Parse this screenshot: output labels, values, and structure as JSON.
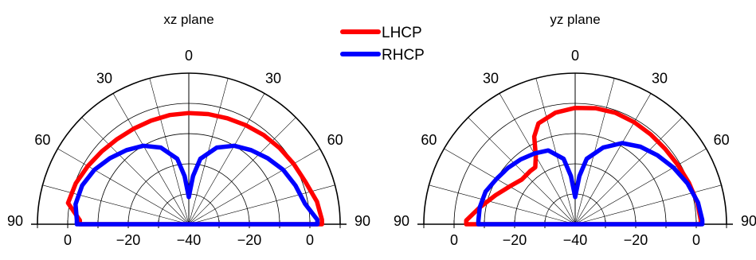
{
  "colors": {
    "lhcp": "#ff0000",
    "rhcp": "#0000ff",
    "axis": "#000000",
    "grid": "#000000"
  },
  "legend": {
    "position": "top-center",
    "items": [
      {
        "label": "LHCP",
        "color": "#ff0000"
      },
      {
        "label": "RHCP",
        "color": "#0000ff"
      }
    ]
  },
  "chart_data": [
    {
      "type": "line",
      "coordinate_system": "polar-half",
      "title": "xz plane",
      "angle_unit": "deg",
      "angle_range": [
        -90,
        90
      ],
      "angle_ticks": [
        -90,
        -60,
        -30,
        0,
        30,
        60,
        90
      ],
      "angle_tick_labels": [
        "90",
        "60",
        "30",
        "0",
        "30",
        "60",
        "90"
      ],
      "radial_range": [
        -40,
        10
      ],
      "radial_grid": [
        -30,
        -20,
        -10,
        0,
        10
      ],
      "radial_ticks_left": [
        "0",
        "−20",
        "−40"
      ],
      "radial_ticks_right": [
        "−20",
        "0"
      ],
      "grid": true,
      "series": [
        {
          "name": "LHCP",
          "angle": [
            -88,
            -80,
            -70,
            -60,
            -50,
            -40,
            -30,
            -20,
            -10,
            0,
            10,
            20,
            30,
            40,
            50,
            60,
            70,
            80,
            88
          ],
          "r": [
            -4,
            0.5,
            -0.3,
            -1.5,
            -2.5,
            -3.2,
            -3.5,
            -3.5,
            -3.3,
            -3.2,
            -3.0,
            -2.7,
            -2.2,
            -1.5,
            -0.8,
            0.0,
            1.0,
            3.0,
            4.0
          ]
        },
        {
          "name": "RHCP",
          "angle": [
            -88,
            -80,
            -70,
            -60,
            -50,
            -40,
            -30,
            -20,
            -10,
            -5,
            -2,
            0,
            2,
            5,
            10,
            20,
            30,
            40,
            50,
            60,
            70,
            80,
            88
          ],
          "r": [
            -3,
            -2,
            -2.5,
            -4,
            -6,
            -8,
            -10,
            -13,
            -18,
            -24,
            -29,
            -31,
            -29,
            -24,
            -18,
            -13,
            -10,
            -8,
            -6,
            -4,
            -2.5,
            -1,
            2.5
          ]
        }
      ]
    },
    {
      "type": "line",
      "coordinate_system": "polar-half",
      "title": "yz plane",
      "angle_unit": "deg",
      "angle_range": [
        -90,
        90
      ],
      "angle_ticks": [
        -90,
        -60,
        -30,
        0,
        30,
        60,
        90
      ],
      "angle_tick_labels": [
        "90",
        "60",
        "30",
        "0",
        "30",
        "60",
        "90"
      ],
      "radial_range": [
        -40,
        10
      ],
      "radial_grid": [
        -30,
        -20,
        -10,
        0,
        10
      ],
      "radial_ticks_left": [
        "0",
        "−20",
        "−40"
      ],
      "radial_ticks_right": [
        "−20",
        "0"
      ],
      "grid": true,
      "series": [
        {
          "name": "LHCP",
          "angle": [
            -88,
            -80,
            -70,
            -60,
            -50,
            -40,
            -35,
            -30,
            -25,
            -20,
            -10,
            0,
            10,
            20,
            30,
            40,
            50,
            60,
            70,
            80,
            88
          ],
          "r": [
            -4,
            -8,
            -12,
            -15,
            -17,
            -17,
            -17,
            -14,
            -8,
            -4.5,
            -2.5,
            -1.5,
            -1.0,
            -0.8,
            -1.0,
            -1.2,
            -1.2,
            -0.8,
            0.0,
            1.0,
            1.5
          ]
        },
        {
          "name": "RHCP",
          "angle": [
            -88,
            -80,
            -70,
            -60,
            -50,
            -40,
            -30,
            -20,
            -10,
            -5,
            -2,
            0,
            2,
            5,
            10,
            20,
            30,
            40,
            50,
            60,
            70,
            80,
            88
          ],
          "r": [
            -8,
            -8,
            -8.5,
            -10,
            -11,
            -12,
            -13,
            -14,
            -18,
            -24,
            -29,
            -31,
            -29,
            -24,
            -18,
            -13,
            -9,
            -6.5,
            -4.5,
            -2.5,
            -0.5,
            1.2,
            2
          ]
        }
      ]
    }
  ]
}
